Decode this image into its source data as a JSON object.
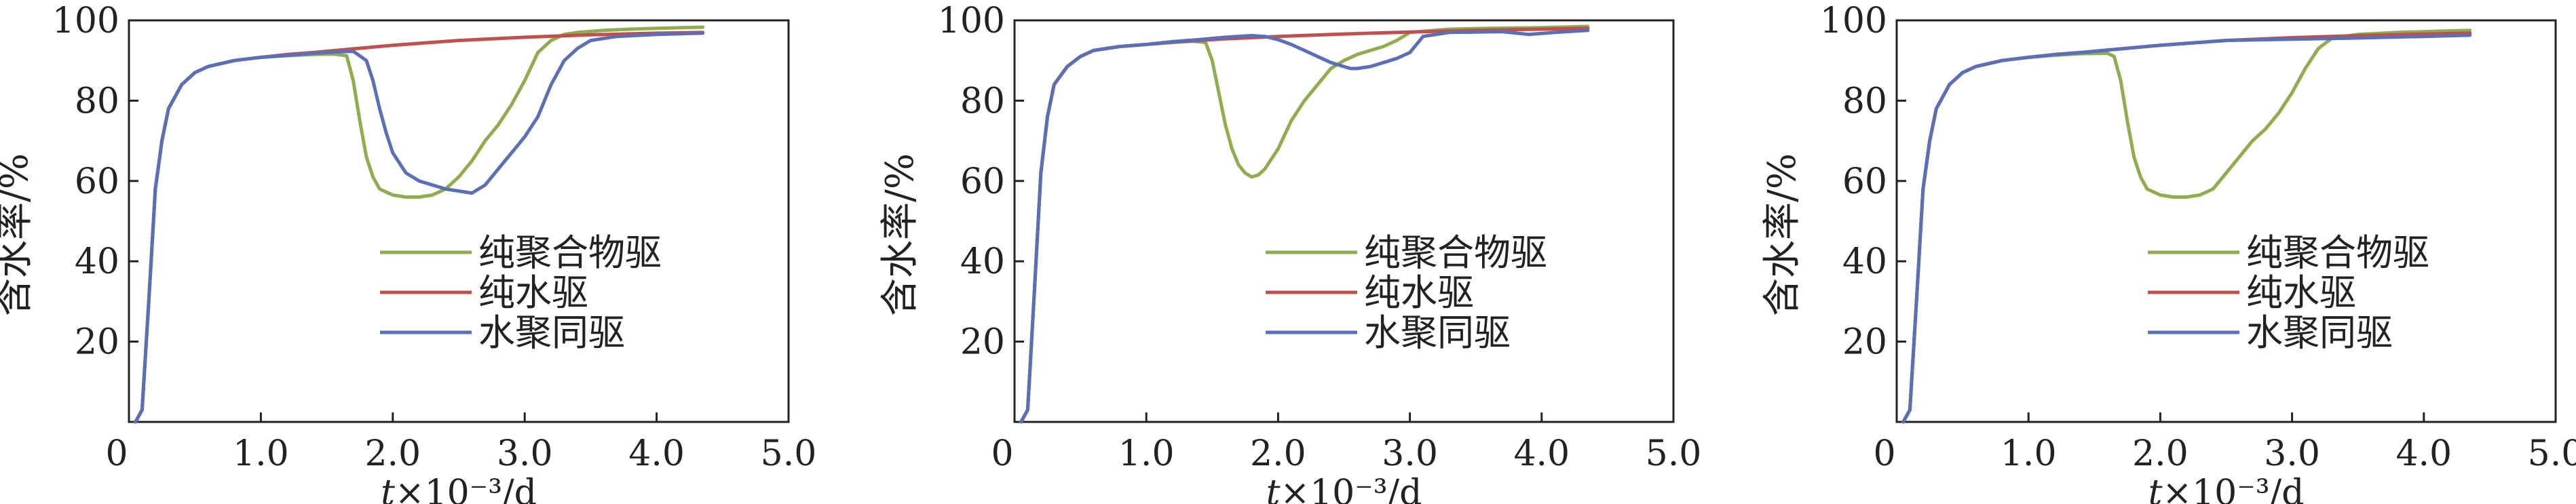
{
  "figure": {
    "panels": 3
  },
  "colors": {
    "poly": "#8fad4f",
    "water": "#c0504d",
    "mixed": "#5b6fb8",
    "axis": "#222222"
  },
  "chart_data": [
    {
      "type": "line",
      "xlabel": "t×10⁻³/d",
      "ylabel": "含水率/%",
      "xlim": [
        0,
        5
      ],
      "ylim": [
        0,
        100
      ],
      "xticks": [
        "0",
        "1.0",
        "2.0",
        "3.0",
        "4.0",
        "5.0"
      ],
      "yticks": [
        "20",
        "40",
        "60",
        "80",
        "100"
      ],
      "legend": {
        "placement": "bottom-right"
      },
      "series": [
        {
          "name": "纯聚合物驱",
          "color_key": "poly",
          "x": [
            0.05,
            0.1,
            0.15,
            0.2,
            0.25,
            0.3,
            0.4,
            0.5,
            0.6,
            0.8,
            1.0,
            1.2,
            1.4,
            1.55,
            1.65,
            1.7,
            1.75,
            1.8,
            1.85,
            1.9,
            2.0,
            2.1,
            2.2,
            2.3,
            2.4,
            2.5,
            2.6,
            2.7,
            2.8,
            2.9,
            3.0,
            3.1,
            3.2,
            3.3,
            3.4,
            3.6,
            3.8,
            4.0,
            4.2,
            4.35
          ],
          "y": [
            0,
            3,
            30,
            58,
            70,
            78,
            84,
            87,
            88.5,
            90,
            90.8,
            91.2,
            91.5,
            91.6,
            91.2,
            85,
            75,
            66,
            61,
            58,
            56.5,
            56,
            56,
            56.5,
            58,
            61,
            65,
            70,
            74,
            79,
            85,
            92,
            95,
            96.5,
            97,
            97.5,
            97.8,
            98,
            98.2,
            98.3
          ]
        },
        {
          "name": "纯水驱",
          "color_key": "water",
          "x": [
            0.05,
            0.1,
            0.15,
            0.2,
            0.25,
            0.3,
            0.4,
            0.5,
            0.6,
            0.8,
            1.0,
            1.2,
            1.4,
            1.6,
            1.8,
            2.0,
            2.5,
            3.0,
            3.5,
            4.0,
            4.35
          ],
          "y": [
            0,
            3,
            30,
            58,
            70,
            78,
            84,
            87,
            88.5,
            90,
            90.8,
            91.5,
            92,
            92.6,
            93.2,
            93.8,
            95,
            95.8,
            96.4,
            96.8,
            97
          ]
        },
        {
          "name": "水聚同驱",
          "color_key": "mixed",
          "x": [
            0.05,
            0.1,
            0.15,
            0.2,
            0.25,
            0.3,
            0.4,
            0.5,
            0.6,
            0.8,
            1.0,
            1.2,
            1.4,
            1.6,
            1.7,
            1.8,
            1.85,
            1.9,
            1.95,
            2.0,
            2.1,
            2.2,
            2.3,
            2.4,
            2.5,
            2.6,
            2.7,
            2.8,
            2.9,
            3.0,
            3.1,
            3.2,
            3.3,
            3.4,
            3.5,
            3.7,
            4.0,
            4.35
          ],
          "y": [
            0,
            3,
            30,
            58,
            70,
            78,
            84,
            87,
            88.5,
            90,
            90.8,
            91.3,
            91.8,
            92.2,
            92.3,
            90,
            85,
            78,
            72,
            67,
            62,
            60,
            59,
            58,
            57.5,
            57,
            59,
            63,
            67,
            71,
            76,
            84,
            90,
            93,
            95,
            96,
            96.5,
            96.8
          ]
        }
      ]
    },
    {
      "type": "line",
      "xlabel": "t×10⁻³/d",
      "ylabel": "含水率/%",
      "xlim": [
        0,
        5
      ],
      "ylim": [
        0,
        100
      ],
      "xticks": [
        "0",
        "1.0",
        "2.0",
        "3.0",
        "4.0",
        "5.0"
      ],
      "yticks": [
        "20",
        "40",
        "60",
        "80",
        "100"
      ],
      "legend": {
        "placement": "bottom-right"
      },
      "series": [
        {
          "name": "纯聚合物驱",
          "color_key": "poly",
          "x": [
            0.05,
            0.1,
            0.15,
            0.2,
            0.25,
            0.3,
            0.4,
            0.5,
            0.6,
            0.8,
            1.0,
            1.2,
            1.35,
            1.45,
            1.5,
            1.55,
            1.6,
            1.65,
            1.7,
            1.75,
            1.8,
            1.85,
            1.9,
            2.0,
            2.1,
            2.2,
            2.3,
            2.4,
            2.5,
            2.6,
            2.7,
            2.8,
            2.9,
            3.0,
            3.3,
            3.6,
            4.0,
            4.35
          ],
          "y": [
            0,
            3,
            32,
            62,
            76,
            84,
            88.5,
            91,
            92.5,
            93.5,
            94,
            94.5,
            94.8,
            94.5,
            90,
            82,
            74,
            68,
            64,
            62,
            61,
            61.5,
            63,
            68,
            75,
            80,
            84,
            88,
            90,
            91.5,
            92.5,
            93.5,
            95,
            97,
            97.8,
            98,
            98.2,
            98.5
          ]
        },
        {
          "name": "纯水驱",
          "color_key": "water",
          "x": [
            0.05,
            0.1,
            0.15,
            0.2,
            0.25,
            0.3,
            0.4,
            0.5,
            0.6,
            0.8,
            1.0,
            1.2,
            1.4,
            1.6,
            2.0,
            2.5,
            3.0,
            3.5,
            4.0,
            4.35
          ],
          "y": [
            0,
            3,
            32,
            62,
            76,
            84,
            88.5,
            91,
            92.5,
            93.5,
            94,
            94.6,
            95,
            95.4,
            96,
            96.6,
            97.1,
            97.5,
            97.8,
            98
          ]
        },
        {
          "name": "水聚同驱",
          "color_key": "mixed",
          "x": [
            0.05,
            0.1,
            0.15,
            0.2,
            0.25,
            0.3,
            0.4,
            0.5,
            0.6,
            0.8,
            1.0,
            1.2,
            1.4,
            1.6,
            1.8,
            1.9,
            2.0,
            2.1,
            2.2,
            2.3,
            2.4,
            2.5,
            2.55,
            2.6,
            2.7,
            2.8,
            2.9,
            3.0,
            3.1,
            3.3,
            3.5,
            3.7,
            3.9,
            4.1,
            4.35
          ],
          "y": [
            0,
            3,
            32,
            62,
            76,
            84,
            88.5,
            91,
            92.5,
            93.5,
            94,
            94.7,
            95.2,
            95.8,
            96.2,
            96,
            95.2,
            94,
            92.5,
            91,
            89.5,
            88.5,
            88,
            88,
            88.5,
            89.5,
            90.5,
            92,
            96,
            97,
            97.1,
            97.2,
            96.5,
            97,
            97.5
          ]
        }
      ]
    },
    {
      "type": "line",
      "xlabel": "t×10⁻³/d",
      "ylabel": "含水率/%",
      "xlim": [
        0,
        5
      ],
      "ylim": [
        0,
        100
      ],
      "xticks": [
        "0",
        "1.0",
        "2.0",
        "3.0",
        "4.0",
        "5.0"
      ],
      "yticks": [
        "20",
        "40",
        "60",
        "80",
        "100"
      ],
      "legend": {
        "placement": "bottom-right"
      },
      "series": [
        {
          "name": "纯聚合物驱",
          "color_key": "poly",
          "x": [
            0.05,
            0.1,
            0.15,
            0.2,
            0.25,
            0.3,
            0.4,
            0.5,
            0.6,
            0.8,
            1.0,
            1.2,
            1.4,
            1.6,
            1.65,
            1.7,
            1.75,
            1.8,
            1.85,
            1.9,
            2.0,
            2.1,
            2.2,
            2.3,
            2.4,
            2.5,
            2.6,
            2.7,
            2.8,
            2.9,
            3.0,
            3.1,
            3.2,
            3.3,
            3.5,
            3.8,
            4.1,
            4.35
          ],
          "y": [
            0,
            3,
            30,
            58,
            70,
            78,
            84,
            87,
            88.5,
            90,
            90.8,
            91.3,
            91.7,
            91.8,
            91,
            85,
            75,
            66,
            61,
            58,
            56.5,
            56,
            56,
            56.5,
            58,
            62,
            66,
            70,
            73,
            77,
            82,
            88,
            93,
            95.5,
            96.5,
            97,
            97.3,
            97.5
          ]
        },
        {
          "name": "纯水驱",
          "color_key": "water",
          "x": [
            0.05,
            0.1,
            0.15,
            0.2,
            0.25,
            0.3,
            0.4,
            0.5,
            0.6,
            0.8,
            1.0,
            1.2,
            1.4,
            1.6,
            1.8,
            2.0,
            2.5,
            3.0,
            3.5,
            4.0,
            4.35
          ],
          "y": [
            0,
            3,
            30,
            58,
            70,
            78,
            84,
            87,
            88.5,
            90,
            90.8,
            91.5,
            92,
            92.6,
            93.2,
            93.8,
            95,
            95.7,
            96.2,
            96.6,
            96.8
          ]
        },
        {
          "name": "水聚同驱",
          "color_key": "mixed",
          "x": [
            0.05,
            0.1,
            0.15,
            0.2,
            0.25,
            0.3,
            0.4,
            0.5,
            0.6,
            0.8,
            1.0,
            1.2,
            1.4,
            1.6,
            1.8,
            2.0,
            2.5,
            3.0,
            3.5,
            4.0,
            4.35
          ],
          "y": [
            0,
            3,
            30,
            58,
            70,
            78,
            84,
            87,
            88.5,
            90,
            90.8,
            91.5,
            92,
            92.6,
            93.2,
            93.8,
            95,
            95.3,
            95.6,
            96,
            96.3
          ]
        }
      ]
    }
  ]
}
